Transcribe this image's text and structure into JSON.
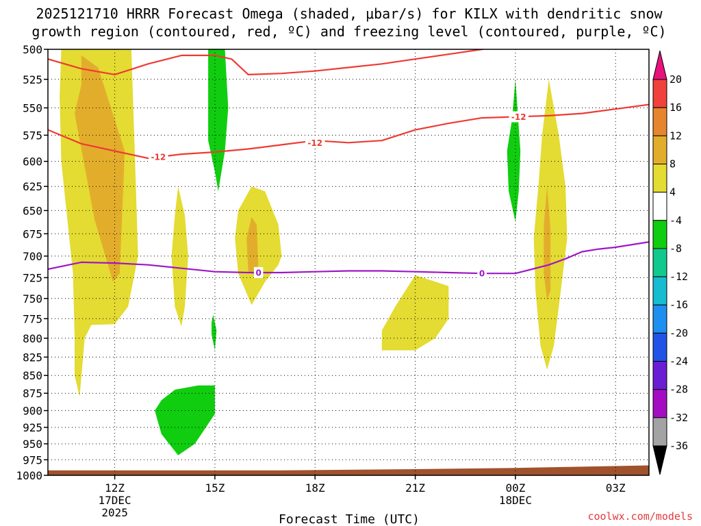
{
  "chart_data": {
    "type": "time-height-contour",
    "title_line1": "2025121710 HRRR Forecast Omega (shaded, μbar/s) for KILX with dendritic snow",
    "title_line2": "growth region (contoured, red, ºC) and freezing level (contoured, purple, ºC)",
    "xlabel": "Forecast Time (UTC)",
    "credit": "coolwx.com/models",
    "x_range_hours": [
      10,
      28
    ],
    "y_range_hPa": [
      500,
      1000
    ],
    "pressure_levels": [
      "500",
      "525",
      "550",
      "575",
      "600",
      "625",
      "650",
      "675",
      "700",
      "725",
      "750",
      "775",
      "800",
      "825",
      "850",
      "875",
      "900",
      "925",
      "950",
      "975",
      "1000"
    ],
    "x_ticks": [
      {
        "hour": 12,
        "label": "12Z",
        "sub1": "17DEC",
        "sub2": "2025"
      },
      {
        "hour": 15,
        "label": "15Z",
        "sub1": "",
        "sub2": ""
      },
      {
        "hour": 18,
        "label": "18Z",
        "sub1": "",
        "sub2": ""
      },
      {
        "hour": 21,
        "label": "21Z",
        "sub1": "",
        "sub2": ""
      },
      {
        "hour": 24,
        "label": "00Z",
        "sub1": "18DEC",
        "sub2": ""
      },
      {
        "hour": 27,
        "label": "03Z",
        "sub1": "",
        "sub2": ""
      }
    ],
    "colorbar": {
      "labels": [
        "20",
        "16",
        "12",
        "8",
        "4",
        "-4",
        "-8",
        "-12",
        "-16",
        "-20",
        "-24",
        "-28",
        "-32",
        "-36"
      ],
      "bins": [
        {
          "from": 16,
          "to": 20,
          "color": "#f0413c"
        },
        {
          "from": 12,
          "to": 16,
          "color": "#e5862e"
        },
        {
          "from": 8,
          "to": 12,
          "color": "#e3ad2c"
        },
        {
          "from": 4,
          "to": 8,
          "color": "#e4db33"
        },
        {
          "from": -4,
          "to": 4,
          "color": "#ffffff"
        },
        {
          "from": -8,
          "to": -4,
          "color": "#10cd10"
        },
        {
          "from": -12,
          "to": -8,
          "color": "#12c98d"
        },
        {
          "from": -16,
          "to": -12,
          "color": "#18bcd1"
        },
        {
          "from": -20,
          "to": -16,
          "color": "#1c8ff0"
        },
        {
          "from": -24,
          "to": -20,
          "color": "#2154e6"
        },
        {
          "from": -28,
          "to": -24,
          "color": "#6a1ed4"
        },
        {
          "from": -32,
          "to": -28,
          "color": "#a40cc4"
        },
        {
          "from": -36,
          "to": -32,
          "color": "#a3a3a3"
        }
      ],
      "top_arrow_color": "#e8127e",
      "bottom_arrow_color": "#000000"
    },
    "shaded_regions": [
      {
        "name": "yellow-region-1",
        "class": "4 to 8",
        "color": "#e4db33",
        "points": [
          [
            10.4,
            500
          ],
          [
            11.3,
            500
          ],
          [
            12.5,
            500
          ],
          [
            12.6,
            590
          ],
          [
            12.7,
            700
          ],
          [
            12.4,
            760
          ],
          [
            12.0,
            782
          ],
          [
            11.3,
            783
          ],
          [
            11.1,
            800
          ],
          [
            10.95,
            880
          ],
          [
            10.8,
            850
          ],
          [
            10.8,
            800
          ],
          [
            10.75,
            720
          ],
          [
            10.4,
            600
          ],
          [
            10.35,
            540
          ]
        ]
      },
      {
        "name": "orange-region-1",
        "class": "8 to 12",
        "color": "#e3ad2c",
        "points": [
          [
            11.0,
            530
          ],
          [
            11.0,
            505
          ],
          [
            11.5,
            515
          ],
          [
            12.3,
            590
          ],
          [
            12.15,
            720
          ],
          [
            11.95,
            730
          ],
          [
            11.4,
            660
          ],
          [
            10.8,
            555
          ]
        ]
      },
      {
        "name": "green-region-upper-15z",
        "class": "-8 to -4",
        "color": "#10cd10",
        "points": [
          [
            14.8,
            500
          ],
          [
            15.3,
            500
          ],
          [
            15.4,
            550
          ],
          [
            15.3,
            590
          ],
          [
            15.1,
            630
          ],
          [
            15.0,
            610
          ],
          [
            14.8,
            580
          ]
        ]
      },
      {
        "name": "yellow-region-1330z",
        "class": "4 to 8",
        "color": "#e4db33",
        "points": [
          [
            13.9,
            625
          ],
          [
            14.1,
            655
          ],
          [
            14.2,
            700
          ],
          [
            14.1,
            760
          ],
          [
            14.0,
            785
          ],
          [
            13.8,
            760
          ],
          [
            13.7,
            700
          ],
          [
            13.8,
            655
          ]
        ]
      },
      {
        "name": "yellow-region-16z",
        "class": "4 to 8",
        "color": "#e4db33",
        "points": [
          [
            16.1,
            625
          ],
          [
            16.5,
            630
          ],
          [
            16.9,
            665
          ],
          [
            17.0,
            700
          ],
          [
            16.9,
            710
          ],
          [
            16.5,
            730
          ],
          [
            16.1,
            758
          ],
          [
            15.7,
            720
          ],
          [
            15.6,
            680
          ],
          [
            15.7,
            650
          ]
        ]
      },
      {
        "name": "orange-region-16z",
        "class": "8 to 12",
        "color": "#e3ad2c",
        "points": [
          [
            16.1,
            657
          ],
          [
            16.25,
            665
          ],
          [
            16.3,
            710
          ],
          [
            16.2,
            722
          ],
          [
            16.0,
            718
          ],
          [
            15.95,
            680
          ]
        ]
      },
      {
        "name": "yellow-region-21z",
        "class": "4 to 8",
        "color": "#e4db33",
        "points": [
          [
            21.0,
            722
          ],
          [
            22.0,
            735
          ],
          [
            22.0,
            775
          ],
          [
            21.6,
            800
          ],
          [
            21.0,
            816
          ],
          [
            20.0,
            816
          ],
          [
            20.0,
            790
          ],
          [
            20.4,
            760
          ]
        ]
      },
      {
        "name": "green-region-15z-small",
        "class": "-8 to -4",
        "color": "#10cd10",
        "points": [
          [
            14.95,
            770
          ],
          [
            15.05,
            790
          ],
          [
            15.0,
            816
          ],
          [
            14.9,
            795
          ],
          [
            14.9,
            780
          ]
        ]
      },
      {
        "name": "green-region-00z",
        "class": "-8 to -4",
        "color": "#10cd10",
        "points": [
          [
            24.0,
            525
          ],
          [
            24.15,
            590
          ],
          [
            24.1,
            630
          ],
          [
            24.0,
            662
          ],
          [
            23.8,
            630
          ],
          [
            23.75,
            590
          ],
          [
            23.9,
            560
          ]
        ]
      },
      {
        "name": "yellow-region-01z",
        "class": "4 to 8",
        "color": "#e4db33",
        "points": [
          [
            25.0,
            525
          ],
          [
            25.3,
            575
          ],
          [
            25.5,
            625
          ],
          [
            25.55,
            680
          ],
          [
            25.3,
            760
          ],
          [
            25.15,
            810
          ],
          [
            24.95,
            842
          ],
          [
            24.75,
            810
          ],
          [
            24.6,
            740
          ],
          [
            24.55,
            680
          ],
          [
            24.7,
            620
          ],
          [
            24.8,
            575
          ]
        ]
      },
      {
        "name": "orange-region-01z",
        "class": "8 to 12",
        "color": "#e3ad2c",
        "points": [
          [
            24.95,
            625
          ],
          [
            25.05,
            670
          ],
          [
            25.05,
            740
          ],
          [
            24.95,
            752
          ],
          [
            24.85,
            720
          ],
          [
            24.85,
            665
          ]
        ]
      },
      {
        "name": "green-region-14z-lower",
        "class": "-8 to -4",
        "color": "#10cd10",
        "points": [
          [
            13.4,
            885
          ],
          [
            13.8,
            870
          ],
          [
            14.5,
            864
          ],
          [
            15.0,
            864
          ],
          [
            15.0,
            905
          ],
          [
            14.4,
            950
          ],
          [
            13.9,
            968
          ],
          [
            13.4,
            935
          ],
          [
            13.2,
            900
          ]
        ]
      }
    ],
    "contours": [
      {
        "name": "dgz-upper-contour",
        "value": -12,
        "color": "#ee3a32",
        "label": "",
        "label_at_hour": null,
        "points": [
          [
            10,
            508
          ],
          [
            11.0,
            516
          ],
          [
            12.0,
            521
          ],
          [
            13.0,
            512
          ],
          [
            14.0,
            505
          ],
          [
            15.0,
            505
          ],
          [
            15.5,
            508
          ],
          [
            16.0,
            521
          ],
          [
            17.0,
            520
          ],
          [
            18.0,
            518
          ],
          [
            19.0,
            515
          ],
          [
            20.0,
            512
          ],
          [
            21.0,
            508
          ],
          [
            22.0,
            504
          ],
          [
            23.0,
            500
          ],
          [
            23.5,
            498
          ],
          [
            24.0,
            494
          ],
          [
            24.5,
            493
          ],
          [
            24.9,
            495
          ],
          [
            25.4,
            488
          ],
          [
            26.0,
            480
          ]
        ]
      },
      {
        "name": "dgz-lower-contour",
        "value": -12,
        "color": "#ee3a32",
        "label": "-12",
        "label_at_hour": 13.0,
        "points": [
          [
            10,
            570
          ],
          [
            11.0,
            583
          ],
          [
            12.0,
            590
          ],
          [
            13.0,
            597
          ],
          [
            14.0,
            593
          ],
          [
            15.0,
            591
          ],
          [
            16.0,
            588
          ],
          [
            17.0,
            584
          ],
          [
            18.0,
            580
          ],
          [
            19.0,
            582
          ],
          [
            20.0,
            580
          ],
          [
            21.0,
            570
          ],
          [
            22.0,
            564
          ],
          [
            23.0,
            559
          ],
          [
            24.0,
            558
          ],
          [
            25.0,
            557
          ],
          [
            26.0,
            555
          ],
          [
            27.0,
            551
          ],
          [
            28.0,
            547
          ]
        ]
      },
      {
        "name": "freezing-level-contour",
        "value": 0,
        "color": "#9d17c7",
        "label": "0",
        "label_at_hour": 16.0,
        "points": [
          [
            10,
            715
          ],
          [
            11.0,
            707
          ],
          [
            12.0,
            708
          ],
          [
            13.0,
            710
          ],
          [
            14.0,
            714
          ],
          [
            15.0,
            718
          ],
          [
            16.0,
            719
          ],
          [
            17.0,
            719
          ],
          [
            18.0,
            718
          ],
          [
            19.0,
            717
          ],
          [
            20.0,
            717
          ],
          [
            21.0,
            718
          ],
          [
            22.0,
            719
          ],
          [
            23.0,
            720
          ],
          [
            24.0,
            720
          ],
          [
            24.5,
            715
          ],
          [
            25.0,
            710
          ],
          [
            25.5,
            703
          ],
          [
            26.0,
            695
          ],
          [
            26.5,
            692
          ],
          [
            27.0,
            690
          ],
          [
            28.0,
            684
          ]
        ]
      }
    ],
    "extra_contour_labels": [
      {
        "text": "-12",
        "color": "#ee3a32",
        "hour": 18.0,
        "hPa": 582
      },
      {
        "text": "-12",
        "color": "#ee3a32",
        "hour": 24.1,
        "hPa": 558
      },
      {
        "text": "0",
        "color": "#9d17c7",
        "hour": 23.0,
        "hPa": 720
      }
    ],
    "terrain": {
      "color": "#a0522d",
      "top_hPa_start": 992,
      "top_hPa_end": 984
    }
  }
}
